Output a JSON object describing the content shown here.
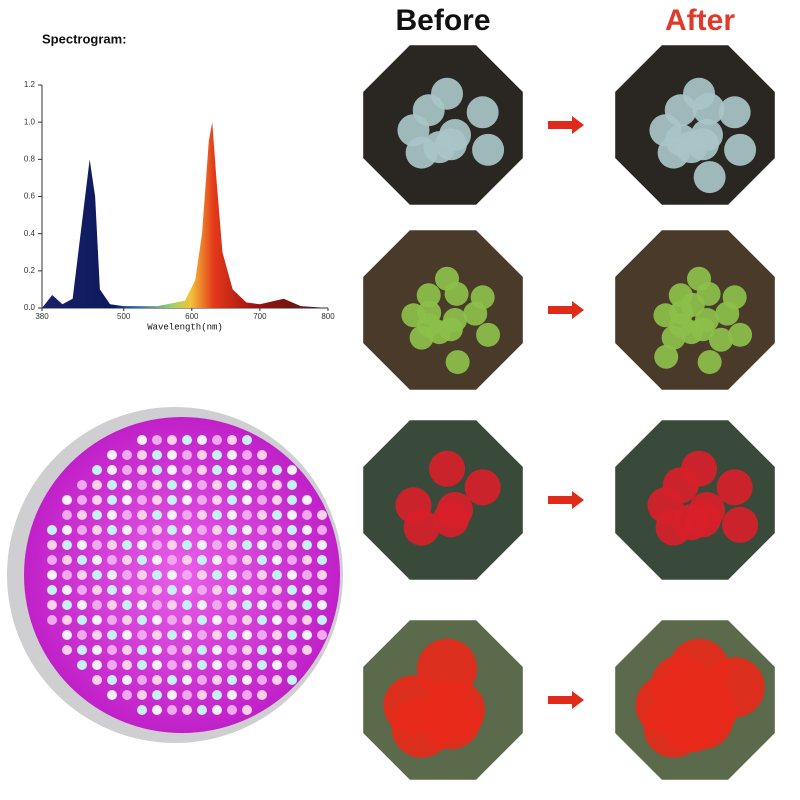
{
  "spectrogram": {
    "type": "area",
    "title": "Spectrogram:",
    "x_label": "Wavelength(nm)",
    "xlim": [
      380,
      800
    ],
    "ylim": [
      0,
      1.2
    ],
    "xticks": [
      380,
      500,
      600,
      700,
      800
    ],
    "yticks": [
      {
        "value": 0,
        "label": "0.0"
      },
      0.2,
      0.4,
      0.6,
      0.8,
      {
        "value": 1,
        "label": "1.0"
      },
      1.2
    ],
    "x": [
      380,
      395,
      410,
      425,
      440,
      450,
      458,
      465,
      480,
      500,
      550,
      590,
      605,
      615,
      625,
      630,
      636,
      645,
      660,
      680,
      700,
      735,
      760,
      800
    ],
    "values": [
      0,
      0.07,
      0.02,
      0.05,
      0.5,
      0.8,
      0.6,
      0.1,
      0.02,
      0.01,
      0.01,
      0.04,
      0.15,
      0.4,
      0.9,
      1.0,
      0.7,
      0.3,
      0.1,
      0.03,
      0.02,
      0.05,
      0.01,
      0
    ]
  },
  "comparison": {
    "before": "Before",
    "after": "After"
  }
}
